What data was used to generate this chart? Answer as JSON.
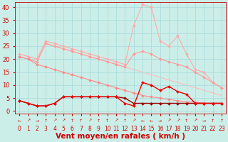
{
  "background_color": "#cceee8",
  "grid_color": "#aadddd",
  "xlabel": "Vent moyen/en rafales ( km/h )",
  "xlabel_color": "#cc0000",
  "xlabel_fontsize": 7.5,
  "tick_color": "#cc0000",
  "x_ticks": [
    0,
    1,
    2,
    3,
    4,
    5,
    6,
    7,
    8,
    9,
    10,
    11,
    12,
    13,
    14,
    15,
    16,
    17,
    18,
    19,
    20,
    21,
    22,
    23
  ],
  "ylim": [
    -1,
    42
  ],
  "xlim": [
    -0.5,
    23.5
  ],
  "yticks": [
    0,
    5,
    10,
    15,
    20,
    25,
    30,
    35,
    40
  ],
  "series": [
    {
      "x": [
        0,
        1,
        2,
        3,
        4,
        5,
        6,
        7,
        8,
        9,
        10,
        11,
        12,
        13,
        14,
        15,
        16,
        17,
        18,
        19,
        20,
        21,
        22,
        23
      ],
      "y": [
        22,
        21,
        20,
        27,
        26,
        25,
        24,
        23,
        22,
        21,
        20,
        19,
        18,
        33,
        41,
        40,
        27,
        25,
        29,
        22,
        16,
        15,
        11,
        9
      ],
      "color": "#ffaaaa",
      "linewidth": 0.8,
      "marker": "D",
      "markersize": 2.0,
      "zorder": 2
    },
    {
      "x": [
        0,
        1,
        2,
        3,
        4,
        5,
        6,
        7,
        8,
        9,
        10,
        11,
        12,
        13,
        14,
        15,
        16,
        17,
        18,
        19,
        20,
        21,
        22,
        23
      ],
      "y": [
        21,
        20,
        19,
        26,
        25,
        24,
        23,
        22,
        21,
        20,
        19,
        18,
        17,
        22,
        23,
        22,
        20,
        19,
        18,
        17,
        15,
        13,
        11,
        9
      ],
      "color": "#ff9999",
      "linewidth": 0.8,
      "marker": "D",
      "markersize": 2.0,
      "zorder": 2
    },
    {
      "x": [
        0,
        1,
        2,
        3,
        4,
        5,
        6,
        7,
        8,
        9,
        10,
        11,
        12,
        13,
        14,
        15,
        16,
        17,
        18,
        19,
        20,
        21,
        22,
        23
      ],
      "y": [
        21,
        20,
        18,
        17,
        16,
        15,
        14,
        13,
        12,
        11,
        10,
        9,
        8,
        7,
        6,
        5.5,
        5,
        4.5,
        4,
        3.5,
        3.5,
        3,
        3,
        3
      ],
      "color": "#ff8888",
      "linewidth": 0.8,
      "marker": "D",
      "markersize": 2.0,
      "zorder": 2
    },
    {
      "x": [
        0,
        1,
        2,
        3,
        4,
        5,
        6,
        7,
        8,
        9,
        10,
        11,
        12,
        13,
        14,
        15,
        16,
        17,
        18,
        19,
        20,
        21,
        22,
        23
      ],
      "y": [
        22,
        21,
        20,
        26,
        25,
        24,
        23,
        22,
        21,
        20,
        19,
        18,
        17,
        16,
        15,
        14,
        13,
        12,
        11,
        10,
        9,
        8,
        7,
        6
      ],
      "color": "#ffbbbb",
      "linewidth": 0.8,
      "marker": null,
      "markersize": 0,
      "zorder": 1
    },
    {
      "x": [
        0,
        1,
        2,
        3,
        4,
        5,
        6,
        7,
        8,
        9,
        10,
        11,
        12,
        13,
        14,
        15,
        16,
        17,
        18,
        19,
        20,
        21,
        22,
        23
      ],
      "y": [
        4,
        3,
        2,
        2,
        3,
        5.5,
        5.5,
        5.5,
        5.5,
        5.5,
        5.5,
        5.5,
        5,
        3,
        3,
        3,
        3,
        3,
        3,
        3,
        3,
        3,
        3,
        3
      ],
      "color": "#990000",
      "linewidth": 1.0,
      "marker": "D",
      "markersize": 2.0,
      "zorder": 4
    },
    {
      "x": [
        0,
        1,
        2,
        3,
        4,
        5,
        6,
        7,
        8,
        9,
        10,
        11,
        12,
        13,
        14,
        15,
        16,
        17,
        18,
        19,
        20,
        21,
        22,
        23
      ],
      "y": [
        4,
        3,
        2,
        2,
        3,
        5.5,
        5.5,
        5.5,
        5.5,
        5.5,
        5.5,
        5.5,
        3,
        2,
        11,
        10,
        8,
        9.5,
        7.5,
        6.5,
        3,
        3,
        3,
        3
      ],
      "color": "#ee0000",
      "linewidth": 1.0,
      "marker": "D",
      "markersize": 2.0,
      "zorder": 4
    }
  ],
  "arrow_symbols": [
    "←",
    "↗",
    "→",
    "↑",
    "↗",
    "↗",
    "↑",
    "↑",
    "↗",
    "↑",
    "↑",
    "↗",
    "↑",
    "↗",
    "←",
    "←",
    "→",
    "↗",
    "↗",
    "↑",
    "↗",
    "→",
    "↑",
    "↑"
  ],
  "arrow_color": "#cc0000",
  "arrow_fontsize": 4.5,
  "num_fontsize": 5.5
}
